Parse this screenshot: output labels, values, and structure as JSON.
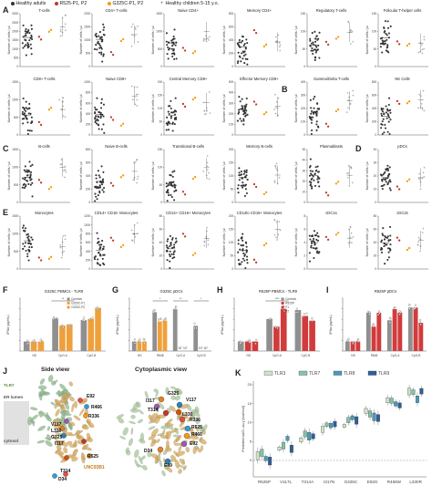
{
  "legend": {
    "items": [
      {
        "label": "Healthy adults",
        "color": "#333333",
        "shape": "dot"
      },
      {
        "label": "R525-P1, P2",
        "color": "#c0392b",
        "shape": "dot"
      },
      {
        "label": "G325C-P1, P2",
        "color": "#f39c12",
        "shape": "dot"
      },
      {
        "label": "Healthy children 5-15 y.o.",
        "color": "#777777",
        "shape": "plus"
      }
    ]
  },
  "panel_letters": [
    "A",
    "B",
    "C",
    "D",
    "E",
    "F",
    "G",
    "H",
    "I",
    "J",
    "K"
  ],
  "cell_panels": [
    {
      "title": "T-cells",
      "ylabel": "Number of cells / µl",
      "yticks": [
        "0",
        "500",
        "1000",
        "1500",
        "2000",
        "2500",
        "3000"
      ]
    },
    {
      "title": "CD4+ T-cells",
      "ylabel": "Number of cells / µl",
      "yticks": [
        "0",
        "500",
        "1000",
        "1500",
        "2000"
      ]
    },
    {
      "title": "Naive CD4+",
      "ylabel": "Number of cells / µl",
      "yticks": [
        "0",
        "500",
        "1000",
        "1500"
      ]
    },
    {
      "title": "Memory CD4+",
      "ylabel": "Number of cells / µl",
      "yticks": [
        "0",
        "200",
        "400",
        "600",
        "800"
      ]
    },
    {
      "title": "Regulatory T-cells",
      "ylabel": "Number of cells / µl",
      "yticks": [
        "0",
        "50",
        "100",
        "150"
      ]
    },
    {
      "title": "Folicular T-helper cells",
      "ylabel": "Number of cells / µl",
      "yticks": [
        "0",
        "50",
        "100",
        "150"
      ]
    },
    {
      "title": "CD8+ T-cells",
      "ylabel": "Number of cells / µl",
      "yticks": [
        "0",
        "500",
        "1000",
        "1500"
      ]
    },
    {
      "title": "Naive CD8+",
      "ylabel": "Number of cells / µl",
      "yticks": [
        "0",
        "200",
        "400",
        "600",
        "800",
        "1000"
      ]
    },
    {
      "title": "Central Memory CD8+",
      "ylabel": "Number of cells / µl",
      "yticks": [
        "0",
        "50",
        "100",
        "150",
        "200"
      ]
    },
    {
      "title": "Effector Memory CD8+",
      "ylabel": "Number of cells / µl",
      "yticks": [
        "0",
        "100",
        "200",
        "300",
        "400",
        "500"
      ]
    },
    {
      "title": "Gamma/Delta T-cells",
      "ylabel": "Number of cells / µl",
      "yticks": [
        "0",
        "100",
        "200",
        "300",
        "400"
      ]
    },
    {
      "title": "NK Cells",
      "ylabel": "Number of cells / µl",
      "yticks": [
        "0",
        "200",
        "400",
        "600",
        "800"
      ]
    },
    {
      "title": "B-cells",
      "ylabel": "Number of cells / µl",
      "yticks": [
        "0",
        "500",
        "1000",
        "1500"
      ]
    },
    {
      "title": "Naive B-cells",
      "ylabel": "Number of cells / µl",
      "yticks": [
        "0",
        "200",
        "400",
        "600",
        "800"
      ]
    },
    {
      "title": "Transitional B-cells",
      "ylabel": "Number of cells / µl",
      "yticks": [
        "0",
        "50",
        "100",
        "150"
      ]
    },
    {
      "title": "Memory B-cells",
      "ylabel": "Number of cells / µl",
      "yticks": [
        "0",
        "50",
        "100",
        "150",
        "200"
      ]
    },
    {
      "title": "Plasmablasts",
      "ylabel": "Number of cells / µl",
      "yticks": [
        "0",
        "10",
        "20",
        "30",
        "40",
        "50"
      ]
    },
    {
      "title": "pDCs",
      "ylabel": "Number of cells / µl",
      "yticks": [
        "0",
        "10",
        "20",
        "30",
        "40"
      ]
    },
    {
      "title": "Monocytes",
      "ylabel": "Number of cells / µl",
      "yticks": [
        "0",
        "500",
        "1000",
        "1500"
      ]
    },
    {
      "title": "CD14+ CD16- Monocytes",
      "ylabel": "Number of cells / µl",
      "yticks": [
        "0",
        "200",
        "400",
        "600",
        "800",
        "1000",
        "1200"
      ]
    },
    {
      "title": "CD14+ CD16+ Monocytes",
      "ylabel": "Number of cells / µl",
      "yticks": [
        "0",
        "20",
        "40",
        "60",
        "80"
      ]
    },
    {
      "title": "CD14lo CD16+ Monocytes",
      "ylabel": "Number of cells / µl",
      "yticks": [
        "0",
        "50",
        "100",
        "150",
        "200"
      ]
    },
    {
      "title": "cDC1s",
      "ylabel": "Number of cells / µl",
      "yticks": [
        "0",
        "2",
        "4",
        "6",
        "8"
      ]
    },
    {
      "title": "cDC2s",
      "ylabel": "Number of cells / µl",
      "yticks": [
        "0",
        "20",
        "40",
        "60",
        "80"
      ]
    }
  ],
  "row4": {
    "F": {
      "title": "G325C PBMCs - TLR9",
      "ylabel": "IFNα (pg/mL)",
      "legend": [
        "Controls",
        "G325C-P1",
        "G325C-P2"
      ],
      "groups": [
        "NS",
        "CpG-A",
        "CpG-B"
      ],
      "sig": [
        "**"
      ]
    },
    "G": {
      "title": "G325C pDCs",
      "ylabel": "IFNα (pg/mL)",
      "groups": [
        "NS",
        "R848",
        "CpG-A",
        "CpG-B"
      ],
      "sig": [
        "*",
        "**",
        "*"
      ],
      "nt": [
        "NT",
        "NT"
      ]
    },
    "H": {
      "title": "R525P PBMCs - TLR9",
      "ylabel": "IFNα (pg/mL)",
      "legend": [
        "Controls",
        "R525P",
        "P1",
        "P2"
      ],
      "groups": [
        "NS",
        "CpG-A",
        "CpG-B"
      ],
      "sig": [
        "****"
      ]
    },
    "I": {
      "title": "R525P pDCs",
      "ylabel": "IFNα (pg/mL)",
      "groups": [
        "NS",
        "R848",
        "CpG-A",
        "CpG-B"
      ]
    }
  },
  "panelJ": {
    "side_title": "Side view",
    "cyto_title": "Cytoplasmic view",
    "labels_side": [
      "TLR7",
      "ER lumen",
      "cytosol",
      "E92",
      "R466",
      "R336",
      "V117",
      "L330",
      "G325",
      "I317",
      "R525",
      "T314",
      "D34",
      "UNC93B1"
    ],
    "labels_cyto": [
      "I317",
      "G325",
      "V117",
      "T314",
      "L330",
      "R336",
      "R525",
      "R466",
      "E92",
      "D34",
      "E49"
    ]
  },
  "panelK": {
    "legend": [
      "TLR3",
      "TLR7",
      "TLR8",
      "TLR9"
    ],
    "ylabel": "Predicted ΔΔGₛₜₐbᵢₗᵢₜy [kcal/mol]",
    "yticks": [
      "0",
      "5",
      "10",
      "15",
      "20"
    ],
    "categories": [
      "R525P",
      "V117L",
      "T314A",
      "I317N",
      "G325C",
      "E92G",
      "R466W",
      "L330R"
    ]
  },
  "colors": {
    "healthy": "#333333",
    "r525": "#c0392b",
    "g325": "#f39c12",
    "children": "#888888",
    "tlr3": "#cfe3c9",
    "tlr7": "#86c3a9",
    "tlr8": "#4a9ab6",
    "tlr9": "#2d5f9a",
    "ifn_grey": "#8f8f8f",
    "ifn_orange": "#f0a03a",
    "ifn_red": "#d23b3b"
  }
}
